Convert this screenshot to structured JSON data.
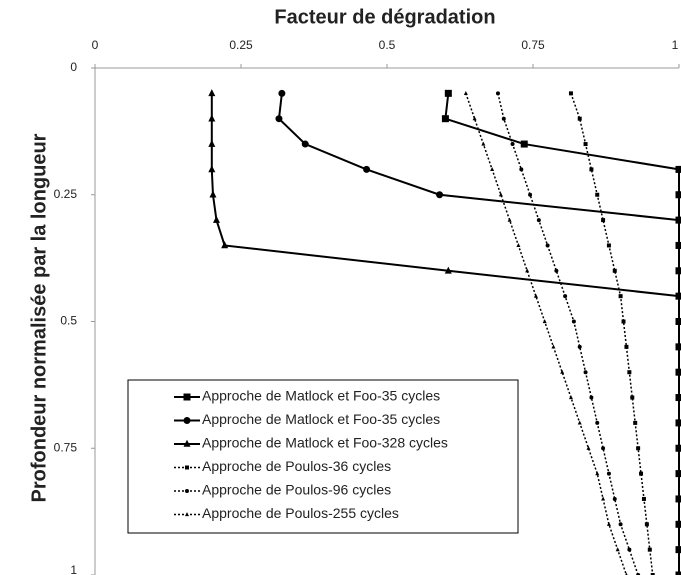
{
  "chart_data": {
    "type": "line",
    "title": "Facteur de dégradation",
    "y_label": "Profondeur normalisée par la longueur",
    "xlim": [
      0,
      1
    ],
    "xticks": [
      0,
      0.25,
      0.5,
      0.75,
      1
    ],
    "ylim": [
      0,
      1
    ],
    "yticks": [
      0,
      0.25,
      0.5,
      0.75,
      1
    ],
    "y_inverted": true,
    "x_axis_position": "top",
    "legend": "lower left",
    "series": [
      {
        "name": "Approche de Matlock et Foo-35 cycles",
        "color": "#000000",
        "marker": "square",
        "dash": "solid",
        "x": [
          0.605,
          0.6,
          0.735,
          1,
          1,
          1,
          1,
          1,
          1,
          1,
          1,
          1,
          1,
          1,
          1,
          1,
          1,
          1,
          1,
          1
        ],
        "y": [
          0.05,
          0.1,
          0.15,
          0.2,
          0.25,
          0.3,
          0.35,
          0.4,
          0.45,
          0.5,
          0.55,
          0.6,
          0.65,
          0.7,
          0.75,
          0.8,
          0.85,
          0.9,
          0.95,
          1
        ]
      },
      {
        "name": "Approche de Matlock et Foo-35 cycles",
        "color": "#000000",
        "marker": "circle",
        "dash": "solid",
        "x": [
          0.32,
          0.315,
          0.36,
          0.465,
          0.59,
          1,
          1,
          1,
          1,
          1,
          1,
          1,
          1,
          1,
          1,
          1,
          1,
          1,
          1
        ],
        "y": [
          0.05,
          0.1,
          0.15,
          0.2,
          0.25,
          0.3,
          0.35,
          0.4,
          0.45,
          0.5,
          0.55,
          0.6,
          0.65,
          0.7,
          0.75,
          0.8,
          0.85,
          0.9,
          0.95
        ]
      },
      {
        "name": "Approche de Matlock et Foo-328 cycles",
        "color": "#000000",
        "marker": "triangle",
        "dash": "solid",
        "x": [
          0.2,
          0.2,
          0.2,
          0.2,
          0.202,
          0.208,
          0.222,
          0.605,
          1,
          1,
          1,
          1,
          1,
          1,
          1,
          1,
          1,
          1,
          1,
          1
        ],
        "y": [
          0.05,
          0.1,
          0.15,
          0.2,
          0.25,
          0.3,
          0.35,
          0.4,
          0.45,
          0.5,
          0.55,
          0.6,
          0.65,
          0.7,
          0.75,
          0.8,
          0.85,
          0.9,
          0.95,
          1
        ]
      },
      {
        "name": "Approche de Poulos-36 cycles",
        "color": "#000000",
        "marker": "square",
        "dash": "dotted",
        "x": [
          0.815,
          0.83,
          0.84,
          0.85,
          0.86,
          0.87,
          0.88,
          0.89,
          0.9,
          0.905,
          0.91,
          0.915,
          0.92,
          0.925,
          0.93,
          0.935,
          0.94,
          0.945,
          0.95,
          0.955
        ],
        "y": [
          0.05,
          0.1,
          0.15,
          0.2,
          0.25,
          0.3,
          0.35,
          0.4,
          0.45,
          0.5,
          0.55,
          0.6,
          0.65,
          0.7,
          0.75,
          0.8,
          0.85,
          0.9,
          0.95,
          1
        ]
      },
      {
        "name": "Approche de Poulos-96 cycles",
        "color": "#000000",
        "marker": "circle",
        "dash": "dotted",
        "x": [
          0.69,
          0.7,
          0.715,
          0.73,
          0.745,
          0.76,
          0.775,
          0.79,
          0.805,
          0.82,
          0.83,
          0.84,
          0.85,
          0.86,
          0.87,
          0.88,
          0.89,
          0.9,
          0.915,
          0.93
        ],
        "y": [
          0.05,
          0.1,
          0.15,
          0.2,
          0.25,
          0.3,
          0.35,
          0.4,
          0.45,
          0.5,
          0.55,
          0.6,
          0.65,
          0.7,
          0.75,
          0.8,
          0.85,
          0.9,
          0.95,
          1
        ]
      },
      {
        "name": "Approche de Poulos-255 cycles",
        "color": "#000000",
        "marker": "triangle",
        "dash": "dotted",
        "x": [
          0.635,
          0.65,
          0.665,
          0.68,
          0.695,
          0.71,
          0.725,
          0.74,
          0.755,
          0.77,
          0.785,
          0.8,
          0.815,
          0.83,
          0.845,
          0.86,
          0.87,
          0.88,
          0.895,
          0.91
        ],
        "y": [
          0.05,
          0.1,
          0.15,
          0.2,
          0.25,
          0.3,
          0.35,
          0.4,
          0.45,
          0.5,
          0.55,
          0.6,
          0.65,
          0.7,
          0.75,
          0.8,
          0.85,
          0.9,
          0.95,
          1
        ]
      }
    ]
  }
}
